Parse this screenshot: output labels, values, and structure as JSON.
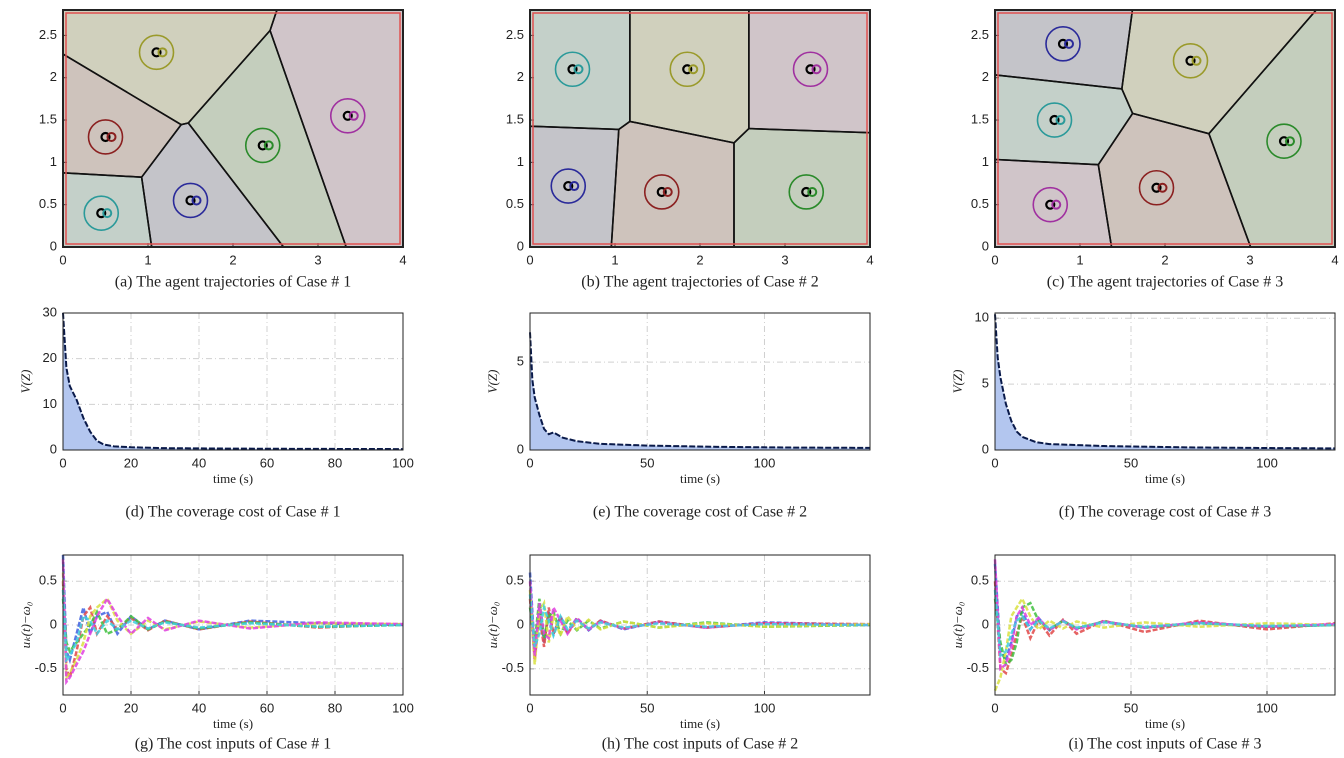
{
  "chart_data": [
    {
      "type": "voronoi",
      "caption": "(a) The agent trajectories of Case # 1",
      "x": [
        1.1,
        0.5,
        2.35,
        3.35,
        1.5,
        0.45
      ],
      "y": [
        2.3,
        1.3,
        1.2,
        1.55,
        0.55,
        0.4
      ],
      "colors": [
        "#9a9a2a",
        "#8b2020",
        "#2a8a2a",
        "#a030a0",
        "#2a2a9a",
        "#2a9a9a"
      ],
      "xlim": [
        0,
        4
      ],
      "ylim": [
        0,
        2.8
      ],
      "xticks": [
        0,
        1,
        2,
        3,
        4
      ],
      "yticks": [
        0,
        0.5,
        1,
        1.5,
        2,
        2.5
      ]
    },
    {
      "type": "voronoi",
      "caption": "(b) The agent trajectories of Case # 2",
      "x": [
        0.5,
        1.85,
        3.3,
        0.45,
        1.55,
        3.25
      ],
      "y": [
        2.1,
        2.1,
        2.1,
        0.72,
        0.65,
        0.65
      ],
      "colors": [
        "#2a9a9a",
        "#9a9a2a",
        "#a030a0",
        "#2a2a9a",
        "#8b2020",
        "#2a8a2a"
      ],
      "xlim": [
        0,
        4
      ],
      "ylim": [
        0,
        2.8
      ],
      "xticks": [
        0,
        1,
        2,
        3,
        4
      ],
      "yticks": [
        0,
        0.5,
        1,
        1.5,
        2,
        2.5
      ]
    },
    {
      "type": "voronoi",
      "caption": "(c) The agent trajectories of Case # 3",
      "x": [
        0.8,
        0.7,
        2.3,
        3.4,
        0.65,
        1.9
      ],
      "y": [
        2.4,
        1.5,
        2.2,
        1.25,
        0.5,
        0.7
      ],
      "colors": [
        "#2a2a9a",
        "#2a9a9a",
        "#9a9a2a",
        "#2a8a2a",
        "#a030a0",
        "#8b2020"
      ],
      "xlim": [
        0,
        4
      ],
      "ylim": [
        0,
        2.8
      ],
      "xticks": [
        0,
        1,
        2,
        3,
        4
      ],
      "yticks": [
        0,
        0.5,
        1,
        1.5,
        2,
        2.5
      ]
    },
    {
      "type": "area",
      "caption": "(d) The coverage cost of Case # 1",
      "ylabel": "V(Z)",
      "xlabel": "time (s)",
      "x": [
        0,
        1,
        2,
        4,
        6,
        8,
        10,
        12,
        15,
        20,
        30,
        50,
        70,
        100
      ],
      "values": [
        30,
        18,
        14,
        11,
        7,
        4,
        2,
        1.2,
        0.8,
        0.6,
        0.4,
        0.3,
        0.25,
        0.2
      ],
      "color": "#b3c6ef",
      "line_color": "#0a1a4a",
      "xlim": [
        0,
        100
      ],
      "ylim": [
        0,
        30
      ],
      "xticks": [
        0,
        20,
        40,
        60,
        80,
        100
      ],
      "yticks": [
        0,
        10,
        20,
        30
      ],
      "grid": true
    },
    {
      "type": "area",
      "caption": "(e) The coverage cost of Case # 2",
      "ylabel": "V(Z)",
      "xlabel": "time (s)",
      "x": [
        0,
        1,
        2,
        4,
        6,
        8,
        10,
        14,
        20,
        30,
        50,
        80,
        110,
        145
      ],
      "values": [
        6.7,
        4,
        3,
        2,
        1.2,
        0.9,
        1.0,
        0.7,
        0.5,
        0.35,
        0.25,
        0.18,
        0.14,
        0.12
      ],
      "color": "#b3c6ef",
      "line_color": "#0a1a4a",
      "xlim": [
        0,
        145
      ],
      "ylim": [
        0,
        7.8
      ],
      "xticks": [
        0,
        50,
        100
      ],
      "yticks": [
        0,
        5
      ],
      "grid": true
    },
    {
      "type": "area",
      "caption": "(f) The coverage cost of Case # 3",
      "ylabel": "V(Z)",
      "xlabel": "time (s)",
      "x": [
        0,
        1,
        2,
        4,
        6,
        8,
        10,
        15,
        20,
        40,
        70,
        100,
        125
      ],
      "values": [
        10.3,
        7,
        5.5,
        3.5,
        2.2,
        1.4,
        1,
        0.6,
        0.45,
        0.3,
        0.2,
        0.15,
        0.12
      ],
      "color": "#b3c6ef",
      "line_color": "#0a1a4a",
      "xlim": [
        0,
        125
      ],
      "ylim": [
        0,
        10.4
      ],
      "xticks": [
        0,
        50,
        100
      ],
      "yticks": [
        0,
        5,
        10
      ],
      "grid": true
    },
    {
      "type": "line",
      "caption": "(g) The cost inputs of Case # 1",
      "ylabel": "uₖ(t)−ω₀",
      "xlabel": "time (s)",
      "x": [
        0,
        1,
        2,
        4,
        6,
        8,
        10,
        13,
        16,
        20,
        25,
        30,
        40,
        55,
        75,
        100
      ],
      "series": [
        {
          "color": "#4060e0",
          "values": [
            0.8,
            -0.3,
            -0.4,
            -0.1,
            0.2,
            -0.1,
            0.1,
            0.15,
            -0.1,
            0.1,
            -0.05,
            0.05,
            -0.05,
            0.05,
            0.02,
            0.0
          ]
        },
        {
          "color": "#e04848",
          "values": [
            0.5,
            -0.5,
            -0.6,
            -0.3,
            0.1,
            0.2,
            -0.1,
            0.1,
            -0.05,
            0.08,
            -0.06,
            0.05,
            -0.05,
            0.04,
            -0.03,
            0.01
          ]
        },
        {
          "color": "#40c040",
          "values": [
            0.3,
            -0.2,
            -0.3,
            -0.2,
            -0.1,
            0.0,
            0.15,
            -0.1,
            -0.05,
            0.1,
            -0.05,
            0.04,
            -0.04,
            0.03,
            -0.02,
            0.0
          ]
        },
        {
          "color": "#d8e040",
          "values": [
            0.6,
            -0.6,
            -0.55,
            -0.4,
            -0.2,
            0.1,
            0.2,
            0.3,
            0.05,
            -0.1,
            0.05,
            -0.05,
            0.04,
            -0.03,
            0.02,
            0.01
          ]
        },
        {
          "color": "#e040e0",
          "values": [
            0.75,
            -0.65,
            -0.6,
            -0.45,
            -0.3,
            -0.1,
            0.1,
            0.3,
            0.1,
            -0.1,
            0.08,
            -0.06,
            0.05,
            -0.04,
            0.03,
            0.01
          ]
        },
        {
          "color": "#40d0e0",
          "values": [
            0.4,
            -0.4,
            -0.35,
            -0.2,
            0.1,
            0.05,
            -0.1,
            0.05,
            -0.05,
            0.05,
            -0.04,
            0.03,
            -0.03,
            0.02,
            -0.02,
            0.0
          ]
        }
      ],
      "xlim": [
        0,
        100
      ],
      "ylim": [
        -0.8,
        0.8
      ],
      "xticks": [
        0,
        20,
        40,
        60,
        80,
        100
      ],
      "yticks": [
        -0.5,
        0,
        0.5
      ],
      "grid": true
    },
    {
      "type": "line",
      "caption": "(h) The cost inputs of Case # 2",
      "ylabel": "uₖ(t)−ω₀",
      "xlabel": "time (s)",
      "x": [
        0,
        2,
        4,
        6,
        8,
        10,
        13,
        16,
        20,
        25,
        30,
        40,
        55,
        75,
        100,
        145
      ],
      "series": [
        {
          "color": "#4060e0",
          "values": [
            0.6,
            -0.3,
            0.2,
            -0.2,
            0.15,
            -0.1,
            0.1,
            -0.08,
            0.08,
            -0.06,
            0.05,
            -0.05,
            0.04,
            -0.03,
            0.03,
            0.0
          ]
        },
        {
          "color": "#e04848",
          "values": [
            0.3,
            -0.4,
            0.1,
            -0.25,
            0.2,
            -0.1,
            0.08,
            -0.1,
            0.06,
            -0.05,
            0.05,
            -0.04,
            0.04,
            -0.03,
            0.02,
            0.01
          ]
        },
        {
          "color": "#40c040",
          "values": [
            0.2,
            -0.2,
            0.3,
            -0.15,
            0.1,
            0.15,
            -0.1,
            0.05,
            -0.06,
            0.05,
            -0.04,
            0.04,
            -0.03,
            0.03,
            -0.02,
            0.0
          ]
        },
        {
          "color": "#d8e040",
          "values": [
            0.4,
            -0.45,
            0.15,
            0.25,
            -0.2,
            0.1,
            -0.12,
            0.1,
            -0.05,
            0.06,
            -0.05,
            0.04,
            -0.03,
            0.02,
            -0.02,
            0.01
          ]
        },
        {
          "color": "#e040e0",
          "values": [
            0.5,
            -0.35,
            0.25,
            -0.1,
            -0.15,
            0.2,
            0.05,
            -0.1,
            0.08,
            -0.05,
            0.04,
            -0.04,
            0.03,
            -0.03,
            0.02,
            0.0
          ]
        },
        {
          "color": "#40d0e0",
          "values": [
            0.35,
            -0.25,
            -0.1,
            0.2,
            0.05,
            -0.12,
            0.1,
            -0.05,
            0.05,
            -0.04,
            0.03,
            -0.03,
            0.02,
            -0.02,
            0.01,
            0.0
          ]
        }
      ],
      "xlim": [
        0,
        145
      ],
      "ylim": [
        -0.8,
        0.8
      ],
      "xticks": [
        0,
        50,
        100
      ],
      "yticks": [
        -0.5,
        0,
        0.5
      ],
      "grid": true
    },
    {
      "type": "line",
      "caption": "(i) The cost inputs of Case # 3",
      "ylabel": "uₖ(t)−ω₀",
      "xlabel": "time (s)",
      "x": [
        0,
        2,
        4,
        6,
        8,
        10,
        13,
        16,
        20,
        25,
        30,
        40,
        55,
        75,
        100,
        125
      ],
      "series": [
        {
          "color": "#4060e0",
          "values": [
            0.7,
            -0.3,
            -0.4,
            -0.2,
            0.1,
            0.15,
            -0.05,
            0.08,
            -0.06,
            0.05,
            -0.04,
            0.04,
            -0.03,
            0.03,
            -0.02,
            0.0
          ]
        },
        {
          "color": "#e04848",
          "values": [
            0.5,
            -0.5,
            -0.55,
            -0.35,
            -0.1,
            0.1,
            -0.15,
            0.05,
            -0.12,
            0.06,
            -0.1,
            0.05,
            -0.08,
            0.05,
            -0.05,
            0.02
          ]
        },
        {
          "color": "#40c040",
          "values": [
            0.3,
            -0.2,
            -0.45,
            -0.4,
            -0.2,
            0.2,
            0.25,
            0.05,
            -0.05,
            0.05,
            -0.04,
            0.04,
            -0.03,
            0.02,
            -0.02,
            0.0
          ]
        },
        {
          "color": "#d8e040",
          "values": [
            -0.75,
            -0.6,
            -0.3,
            0.1,
            0.2,
            0.3,
            0.1,
            -0.05,
            0.05,
            -0.04,
            0.04,
            -0.03,
            0.03,
            -0.02,
            0.02,
            0.0
          ]
        },
        {
          "color": "#e040e0",
          "values": [
            0.75,
            -0.5,
            -0.45,
            -0.25,
            0.1,
            0.2,
            0.0,
            0.08,
            -0.06,
            0.05,
            -0.05,
            0.04,
            -0.03,
            0.03,
            -0.02,
            0.01
          ]
        },
        {
          "color": "#40d0e0",
          "values": [
            0.4,
            -0.35,
            -0.3,
            -0.1,
            0.05,
            0.1,
            -0.05,
            0.05,
            -0.04,
            0.04,
            -0.03,
            0.03,
            -0.02,
            0.02,
            -0.01,
            0.0
          ]
        }
      ],
      "xlim": [
        0,
        125
      ],
      "ylim": [
        -0.8,
        0.8
      ],
      "xticks": [
        0,
        50,
        100
      ],
      "yticks": [
        -0.5,
        0,
        0.5
      ],
      "grid": true
    }
  ]
}
